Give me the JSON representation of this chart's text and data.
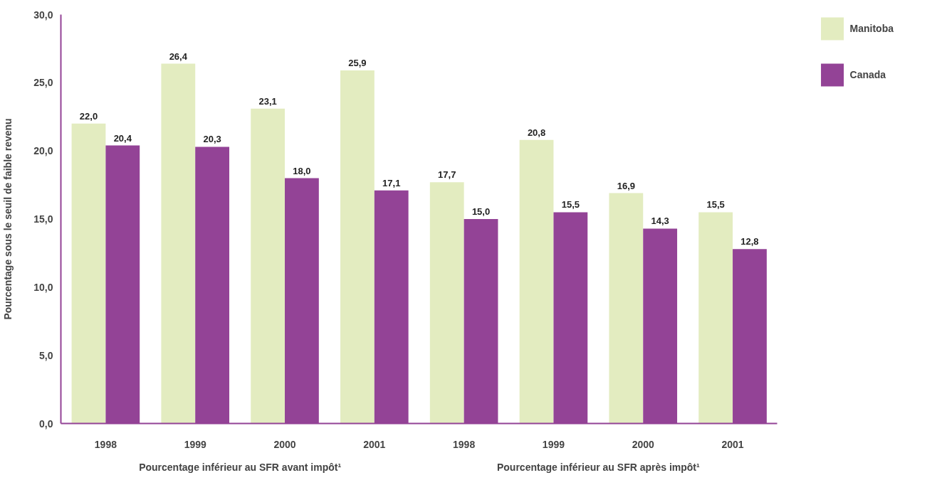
{
  "chart_data": {
    "type": "bar",
    "ylabel": "Pourcentage sous le seuil de faible revenu",
    "categories": [
      "1998",
      "1999",
      "2000",
      "2001",
      "1998",
      "1999",
      "2000",
      "2001"
    ],
    "annotations": [
      "Pourcentage inférieur au SFR avant impôt¹",
      "Pourcentage inférieur au SFR après impôt¹"
    ],
    "series": [
      {
        "name": "Manitoba",
        "color": "#e3ecc0",
        "values": [
          22.0,
          26.4,
          23.1,
          25.9,
          17.7,
          20.8,
          16.9,
          15.5
        ],
        "value_labels": [
          "22,0",
          "26,4",
          "23,1",
          "25,9",
          "17,7",
          "20,8",
          "16,9",
          "15,5"
        ]
      },
      {
        "name": "Canada",
        "color": "#934396",
        "values": [
          20.4,
          20.3,
          18.0,
          17.1,
          15.0,
          15.5,
          14.3,
          12.8
        ],
        "value_labels": [
          "20,4",
          "20,3",
          "18,0",
          "17,1",
          "15,0",
          "15,5",
          "14,3",
          "12,8"
        ]
      }
    ],
    "ylim": [
      0,
      30
    ],
    "yticks": [
      {
        "value": 0,
        "label": "0,0"
      },
      {
        "value": 5,
        "label": "5,0"
      },
      {
        "value": 10,
        "label": "10,0"
      },
      {
        "value": 15,
        "label": "15,0"
      },
      {
        "value": 20,
        "label": "20,0"
      },
      {
        "value": 25,
        "label": "25,0"
      },
      {
        "value": 30,
        "label": "30,0"
      }
    ],
    "grid": false,
    "legend": "top right"
  }
}
